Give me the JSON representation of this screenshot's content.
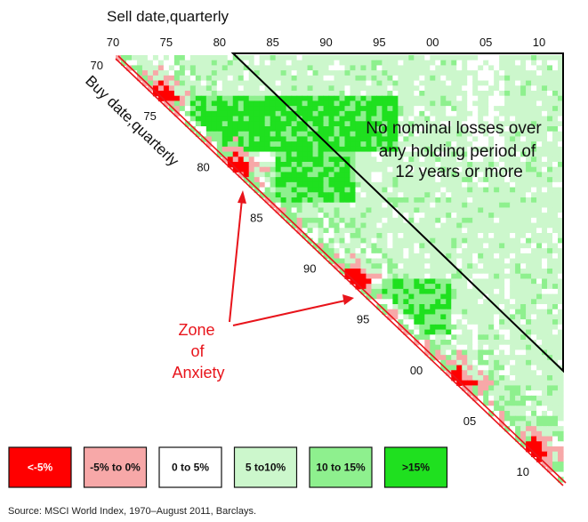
{
  "chart_data": {
    "type": "heatmap",
    "title": "",
    "xlabel": "Sell date,quarterly",
    "ylabel": "Buy date,quarterly",
    "x_ticks": [
      "70",
      "75",
      "80",
      "85",
      "90",
      "95",
      "00",
      "05",
      "10"
    ],
    "y_ticks": [
      "70",
      "75",
      "80",
      "85",
      "90",
      "95",
      "00",
      "05",
      "10"
    ],
    "x_range": [
      "1970",
      "2011 Q3"
    ],
    "y_range": [
      "1970",
      "2011 Q3"
    ],
    "legend": {
      "placement": "bottom",
      "items": [
        {
          "label": "<-5%",
          "color": "#ff0000",
          "text_color": "#ffffff"
        },
        {
          "label": "-5% to 0%",
          "color": "#f7a8a8",
          "text_color": "#111111"
        },
        {
          "label": "0 to 5%",
          "color": "#ffffff",
          "text_color": "#111111"
        },
        {
          "label": "5 to10%",
          "color": "#ccf7cc",
          "text_color": "#111111"
        },
        {
          "label": "10 to 15%",
          "color": "#8ef08e",
          "text_color": "#111111"
        },
        {
          "label": ">15%",
          "color": "#1fe01f",
          "text_color": "#111111"
        }
      ]
    },
    "annotations": {
      "no_loss_lines": [
        "No nominal losses over",
        "any holding period of",
        "12 years or more"
      ],
      "no_loss_threshold_years": 12,
      "zone_lines": [
        "Zone",
        "of",
        "Anxiety"
      ],
      "loss_clusters": [
        "1974",
        "1981",
        "1992",
        "2002",
        "2009"
      ]
    },
    "source": "Source: MSCI World Index, 1970–August 2011, Barclays."
  },
  "colors": {
    "loss_large": "#ff0000",
    "loss_small": "#f7a8a8",
    "flat": "#ffffff",
    "gain_low": "#ccf7cc",
    "gain_mid": "#8ef08e",
    "gain_high": "#1fe01f",
    "annotation_red": "#e8141b",
    "triangle_line": "#000000"
  }
}
